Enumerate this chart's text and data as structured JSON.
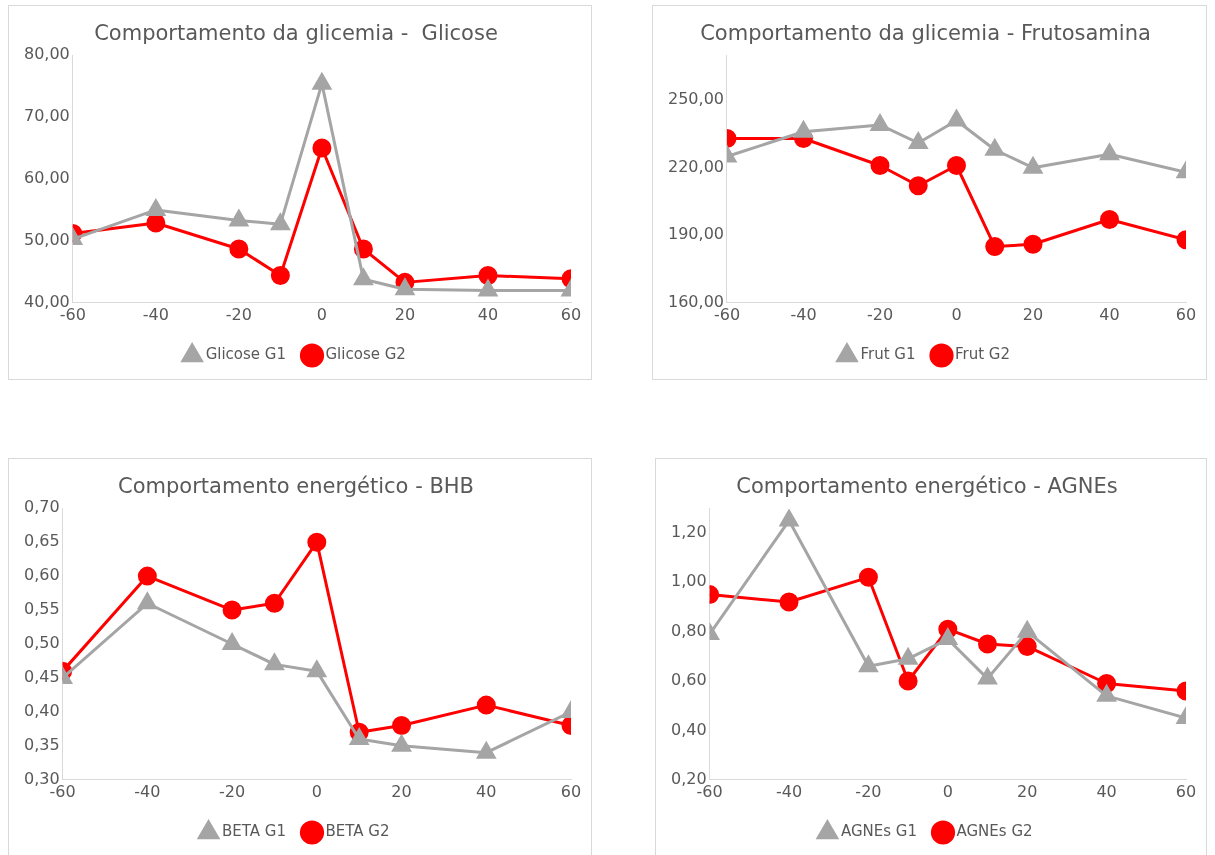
{
  "chart_data": [
    {
      "type": "line",
      "title": "Comportamento da glicemia -  Glicose",
      "x": [
        -60,
        -40,
        -20,
        -10,
        0,
        10,
        20,
        40,
        60
      ],
      "xlim": [
        -60,
        60
      ],
      "xticks": [
        -60,
        -40,
        -20,
        0,
        20,
        40,
        60
      ],
      "ylim": [
        40,
        80
      ],
      "yticks": [
        {
          "value": 40,
          "label": "40,00"
        },
        {
          "value": 50,
          "label": "50,00"
        },
        {
          "value": 60,
          "label": "60,00"
        },
        {
          "value": 70,
          "label": "70,00"
        },
        {
          "value": 80,
          "label": "80,00"
        }
      ],
      "legend": "bottom",
      "series": [
        {
          "name": "Glicose G1",
          "color": "#a5a5a5",
          "marker": "triangle",
          "values": [
            50.3,
            55.0,
            53.3,
            52.7,
            75.4,
            43.8,
            42.2,
            42.0,
            42.0
          ]
        },
        {
          "name": "Glicose G2",
          "color": "#ff0000",
          "marker": "circle",
          "values": [
            51.2,
            52.9,
            48.7,
            44.4,
            65.0,
            48.7,
            43.3,
            44.4,
            43.9
          ]
        }
      ]
    },
    {
      "type": "line",
      "title": "Comportamento da glicemia - Frutosamina",
      "x": [
        -60,
        -40,
        -20,
        -10,
        0,
        10,
        20,
        40,
        60
      ],
      "xlim": [
        -60,
        60
      ],
      "xticks": [
        -60,
        -40,
        -20,
        0,
        20,
        40,
        60
      ],
      "ylim": [
        160,
        270
      ],
      "yticks": [
        {
          "value": 160,
          "label": "160,00"
        },
        {
          "value": 190,
          "label": "190,00"
        },
        {
          "value": 220,
          "label": "220,00"
        },
        {
          "value": 250,
          "label": "250,00"
        }
      ],
      "legend": "bottom",
      "series": [
        {
          "name": "Frut G1",
          "color": "#a5a5a5",
          "marker": "triangle",
          "values": [
            225,
            236,
            239,
            231,
            241,
            228,
            220,
            226,
            218
          ]
        },
        {
          "name": "Frut G2",
          "color": "#ff0000",
          "marker": "circle",
          "values": [
            233,
            233,
            221,
            212,
            221,
            185,
            186,
            197,
            188
          ]
        }
      ]
    },
    {
      "type": "line",
      "title": "Comportamento energético - BHB",
      "x": [
        -60,
        -40,
        -20,
        -10,
        0,
        10,
        20,
        40,
        60
      ],
      "xlim": [
        -60,
        60
      ],
      "xticks": [
        -60,
        -40,
        -20,
        0,
        20,
        40,
        60
      ],
      "ylim": [
        0.3,
        0.7
      ],
      "yticks": [
        {
          "value": 0.3,
          "label": "0,30"
        },
        {
          "value": 0.35,
          "label": "0,35"
        },
        {
          "value": 0.4,
          "label": "0,40"
        },
        {
          "value": 0.45,
          "label": "0,45"
        },
        {
          "value": 0.5,
          "label": "0,50"
        },
        {
          "value": 0.55,
          "label": "0,55"
        },
        {
          "value": 0.6,
          "label": "0,60"
        },
        {
          "value": 0.65,
          "label": "0,65"
        },
        {
          "value": 0.7,
          "label": "0,70"
        }
      ],
      "legend": "bottom",
      "series": [
        {
          "name": "BETA G1",
          "color": "#a5a5a5",
          "marker": "triangle",
          "values": [
            0.45,
            0.56,
            0.5,
            0.47,
            0.46,
            0.36,
            0.35,
            0.34,
            0.4
          ]
        },
        {
          "name": "BETA G2",
          "color": "#ff0000",
          "marker": "circle",
          "values": [
            0.46,
            0.6,
            0.55,
            0.56,
            0.65,
            0.37,
            0.38,
            0.41,
            0.38
          ]
        }
      ]
    },
    {
      "type": "line",
      "title": "Comportamento energético - AGNEs",
      "x": [
        -60,
        -40,
        -20,
        -10,
        0,
        10,
        20,
        40,
        60
      ],
      "xlim": [
        -60,
        60
      ],
      "xticks": [
        -60,
        -40,
        -20,
        0,
        20,
        40,
        60
      ],
      "ylim": [
        0.2,
        1.3
      ],
      "yticks": [
        {
          "value": 0.2,
          "label": "0,20"
        },
        {
          "value": 0.4,
          "label": "0,40"
        },
        {
          "value": 0.6,
          "label": "0,60"
        },
        {
          "value": 0.8,
          "label": "0,80"
        },
        {
          "value": 1.0,
          "label": "1,00"
        },
        {
          "value": 1.2,
          "label": "1,20"
        }
      ],
      "legend": "bottom",
      "series": [
        {
          "name": "AGNEs G1",
          "color": "#a5a5a5",
          "marker": "triangle",
          "values": [
            0.79,
            1.25,
            0.66,
            0.69,
            0.77,
            0.61,
            0.8,
            0.54,
            0.45
          ]
        },
        {
          "name": "AGNEs G2",
          "color": "#ff0000",
          "marker": "circle",
          "values": [
            0.95,
            0.92,
            1.02,
            0.6,
            0.81,
            0.75,
            0.74,
            0.59,
            0.56
          ]
        }
      ]
    }
  ]
}
